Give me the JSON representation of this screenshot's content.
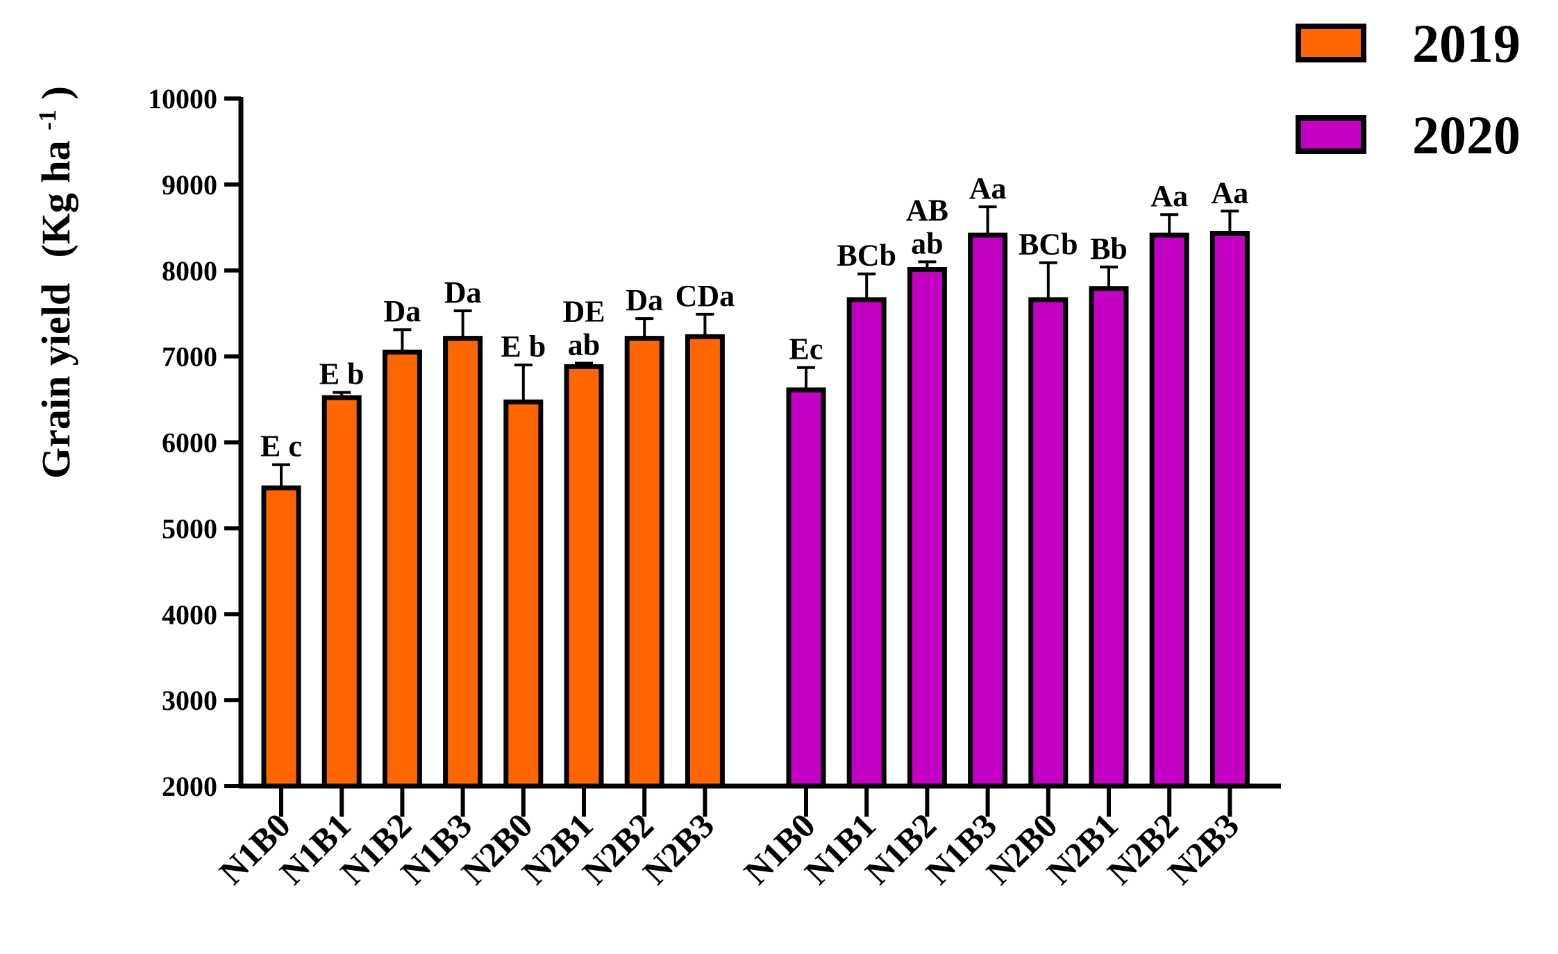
{
  "chart_data": {
    "type": "bar",
    "title": "",
    "xlabel": "",
    "ylabel": "Grain yield",
    "ylabel_unit": "(Kg ha",
    "ylabel_unit_sup": "-1",
    "ylabel_unit_close": ")",
    "ylim": [
      2000,
      10000
    ],
    "yticks": [
      2000,
      3000,
      4000,
      5000,
      6000,
      7000,
      8000,
      9000,
      10000
    ],
    "legend_position": "top-right",
    "series": [
      {
        "name": "2019",
        "color": "#ff6600",
        "categories": [
          "N1B0",
          "N1B1",
          "N1B2",
          "N1B3",
          "N2B0",
          "N2B1",
          "N2B2",
          "N2B3"
        ],
        "values": [
          5470,
          6520,
          7050,
          7210,
          6470,
          6880,
          7210,
          7230
        ],
        "errors": [
          270,
          60,
          260,
          320,
          430,
          40,
          230,
          260
        ],
        "labels": [
          [
            "E c"
          ],
          [
            "E b"
          ],
          [
            "Da"
          ],
          [
            "Da"
          ],
          [
            "E b"
          ],
          [
            "DE",
            "ab"
          ],
          [
            "Da"
          ],
          [
            "CDa"
          ]
        ]
      },
      {
        "name": "2020",
        "color": "#c400c4",
        "categories": [
          "N1B0",
          "N1B1",
          "N1B2",
          "N1B3",
          "N2B0",
          "N2B1",
          "N2B2",
          "N2B3"
        ],
        "values": [
          6610,
          7660,
          8010,
          8410,
          7660,
          7790,
          8410,
          8430
        ],
        "errors": [
          260,
          300,
          90,
          330,
          430,
          250,
          240,
          260
        ],
        "labels": [
          [
            "Ec"
          ],
          [
            "BCb"
          ],
          [
            "AB",
            "ab"
          ],
          [
            "Aa"
          ],
          [
            "BCb"
          ],
          [
            "Bb"
          ],
          [
            "Aa"
          ],
          [
            "Aa"
          ]
        ]
      }
    ]
  }
}
